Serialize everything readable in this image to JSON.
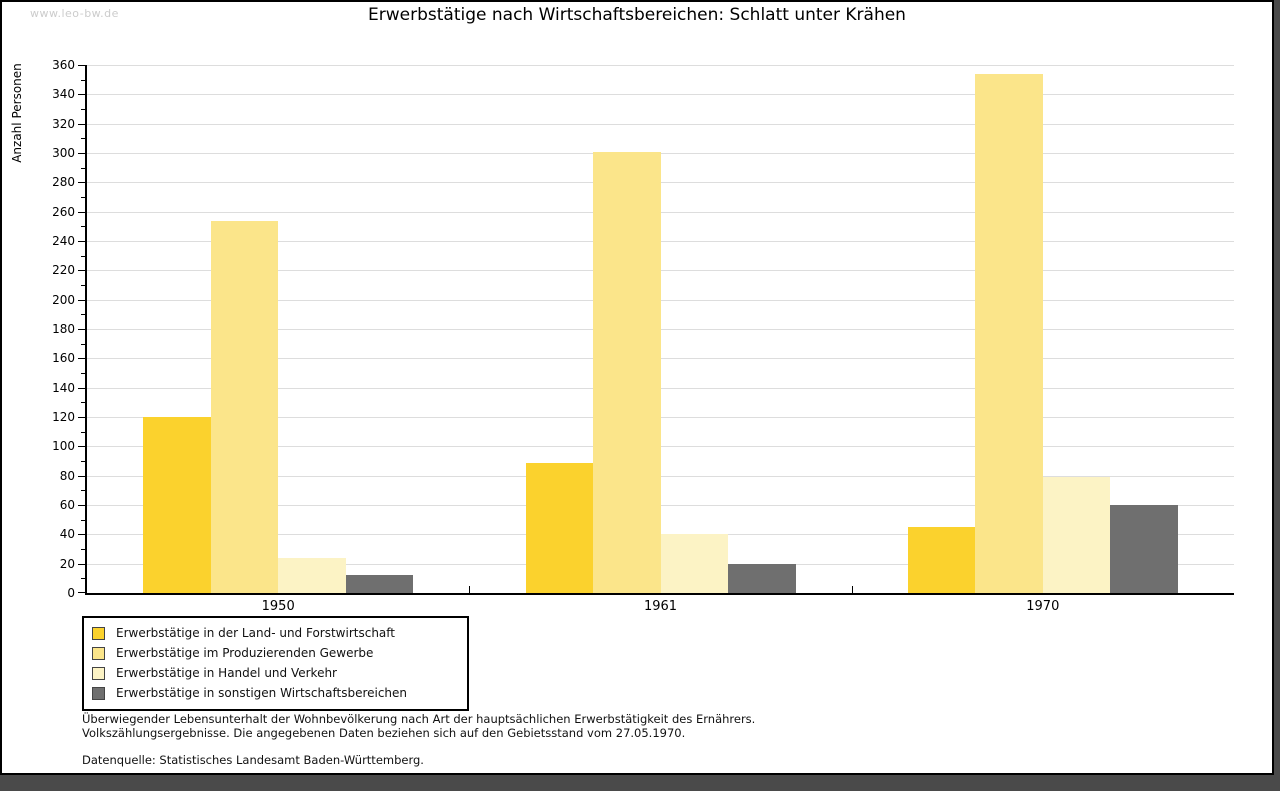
{
  "watermark": "www.leo-bw.de",
  "title": "Erwerbstätige nach Wirtschaftsbereichen: Schlatt unter Krähen",
  "footer": {
    "note_line1": "Überwiegender Lebensunterhalt der Wohnbevölkerung nach Art der hauptsächlichen Erwerbstätigkeit des Ernährers.",
    "note_line2": "Volkszählungsergebnisse. Die angegebenen Daten beziehen sich auf den Gebietsstand vom 27.05.1970.",
    "source": "Datenquelle: Statistisches Landesamt Baden-Württemberg."
  },
  "colors": {
    "page_background": "#ffffff",
    "outer_background": "#4a4a4a",
    "frame": "#000000",
    "gridline": "#dddddd",
    "axis": "#000000",
    "watermark": "#cccccc"
  },
  "chart_data": {
    "type": "bar",
    "title": "Erwerbstätige nach Wirtschaftsbereichen: Schlatt unter Krähen",
    "xlabel": "",
    "ylabel": "Anzahl Personen",
    "categories": [
      "1950",
      "1961",
      "1970"
    ],
    "series": [
      {
        "name": "Erwerbstätige in der Land- und Forstwirtschaft",
        "color": "#fbd22d",
        "values": [
          120,
          89,
          45
        ]
      },
      {
        "name": "Erwerbstätige im Produzierenden Gewerbe",
        "color": "#fbe58a",
        "values": [
          254,
          301,
          354
        ]
      },
      {
        "name": "Erwerbstätige in Handel und Verkehr",
        "color": "#fcf3c5",
        "values": [
          24,
          40,
          79
        ]
      },
      {
        "name": "Erwerbstätige in sonstigen Wirtschaftsbereichen",
        "color": "#6f6f6f",
        "values": [
          12,
          20,
          60
        ]
      }
    ],
    "ylim": [
      0,
      360
    ],
    "ytick_step": 20,
    "yminor_step": 10,
    "grid": true,
    "legend_position": "bottom-left"
  }
}
